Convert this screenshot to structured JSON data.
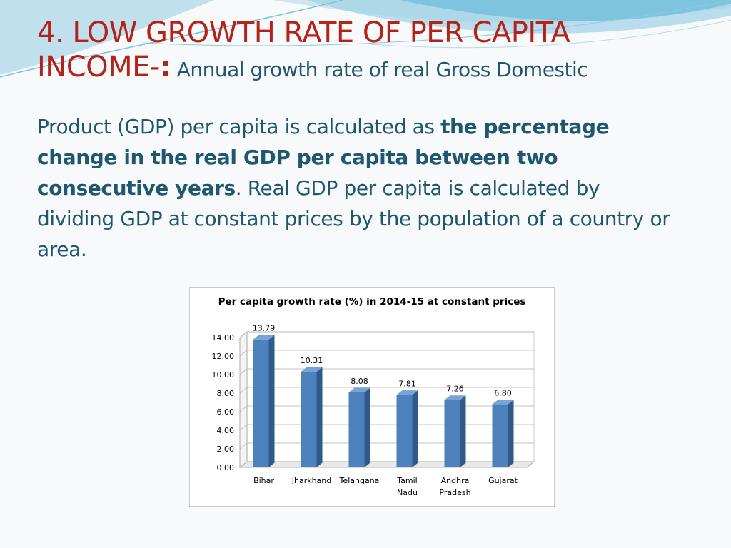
{
  "slide": {
    "title_line1": "4. LOW GROWTH RATE OF PER CAPITA",
    "title_line2": "INCOME-",
    "title_colon": ":",
    "intro": " Annual growth rate of real Gross Domestic",
    "body_part1": "Product (GDP) per capita is calculated as ",
    "body_bold": "the percentage change in the real GDP per capita between two consecutive years",
    "body_part2": ". Real GDP per capita is calculated by dividing GDP at constant prices by the population of a country or area."
  },
  "colors": {
    "title": "#b52318",
    "body": "#1f5670",
    "bar_front": "#4f81bd",
    "bar_side": "#2e5b8c",
    "bar_top": "#7aa3d6"
  },
  "chart_data": {
    "type": "bar",
    "title": "Per capita growth rate (%) in 2014-15 at constant prices",
    "categories": [
      [
        "Bihar"
      ],
      [
        "Jharkhand"
      ],
      [
        "Telangana"
      ],
      [
        "Tamil",
        "Nadu"
      ],
      [
        "Andhra",
        "Pradesh"
      ],
      [
        "Gujarat"
      ]
    ],
    "values": [
      13.79,
      10.31,
      8.08,
      7.81,
      7.26,
      6.8
    ],
    "value_labels": [
      "13.79",
      "10.31",
      "8.08",
      "7.81",
      "7.26",
      "6.80"
    ],
    "y_ticks": [
      "0.00",
      "2.00",
      "4.00",
      "6.00",
      "8.00",
      "10.00",
      "12.00",
      "14.00"
    ],
    "ylim": [
      0,
      14
    ],
    "xlabel": "",
    "ylabel": "",
    "grid": true,
    "legend": "none"
  }
}
